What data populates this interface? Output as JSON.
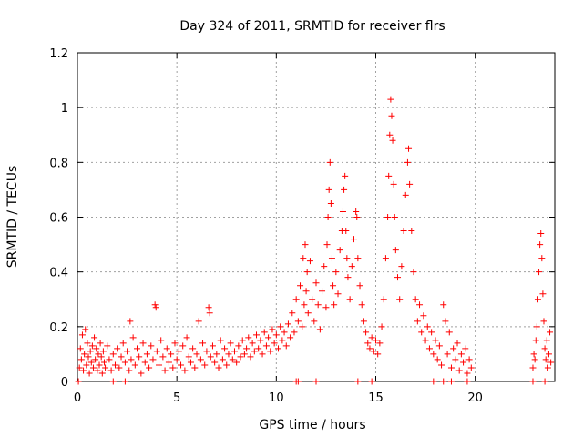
{
  "chart_data": {
    "type": "scatter",
    "title": "Day 324 of 2011, SRMTID for receiver flrs",
    "xlabel": "GPS time / hours",
    "ylabel": "SRMTID / TECUs",
    "xlim": [
      0,
      24
    ],
    "ylim": [
      0,
      1.2
    ],
    "x_ticks": [
      0,
      5,
      10,
      15,
      20
    ],
    "x_tick_labels": [
      "0",
      "5",
      "10",
      "15",
      "20"
    ],
    "y_ticks": [
      0,
      0.2,
      0.4,
      0.6,
      0.8,
      1.0,
      1.2
    ],
    "y_tick_labels": [
      "0",
      "0.2",
      "0.4",
      "0.6",
      "0.8",
      "1",
      "1.2"
    ],
    "grid": true,
    "marker": "plus",
    "color": "#ff0000",
    "series": [
      {
        "name": "SRMTID",
        "points": [
          [
            0.1,
            0.05
          ],
          [
            0.15,
            0.12
          ],
          [
            0.2,
            0.08
          ],
          [
            0.25,
            0.17
          ],
          [
            0.3,
            0.04
          ],
          [
            0.35,
            0.1
          ],
          [
            0.4,
            0.19
          ],
          [
            0.45,
            0.06
          ],
          [
            0.5,
            0.14
          ],
          [
            0.55,
            0.09
          ],
          [
            0.6,
            0.03
          ],
          [
            0.65,
            0.11
          ],
          [
            0.7,
            0.07
          ],
          [
            0.75,
            0.13
          ],
          [
            0.8,
            0.05
          ],
          [
            0.85,
            0.16
          ],
          [
            0.9,
            0.08
          ],
          [
            0.95,
            0.12
          ],
          [
            1.0,
            0.04
          ],
          [
            1.05,
            0.1
          ],
          [
            1.1,
            0.06
          ],
          [
            1.15,
            0.14
          ],
          [
            1.2,
            0.09
          ],
          [
            1.25,
            0.03
          ],
          [
            1.3,
            0.11
          ],
          [
            1.35,
            0.07
          ],
          [
            1.4,
            0.05
          ],
          [
            1.5,
            0.13
          ],
          [
            1.6,
            0.08
          ],
          [
            1.7,
            0.04
          ],
          [
            1.8,
            0.1
          ],
          [
            1.9,
            0.06
          ],
          [
            2.0,
            0.12
          ],
          [
            2.1,
            0.05
          ],
          [
            2.2,
            0.09
          ],
          [
            2.3,
            0.14
          ],
          [
            2.4,
            0.07
          ],
          [
            2.5,
            0.11
          ],
          [
            2.6,
            0.04
          ],
          [
            2.65,
            0.22
          ],
          [
            2.7,
            0.08
          ],
          [
            2.8,
            0.16
          ],
          [
            2.9,
            0.06
          ],
          [
            3.0,
            0.12
          ],
          [
            3.1,
            0.09
          ],
          [
            3.2,
            0.03
          ],
          [
            3.3,
            0.14
          ],
          [
            3.4,
            0.07
          ],
          [
            3.5,
            0.1
          ],
          [
            3.6,
            0.05
          ],
          [
            3.7,
            0.13
          ],
          [
            3.8,
            0.08
          ],
          [
            3.9,
            0.28
          ],
          [
            3.95,
            0.27
          ],
          [
            4.0,
            0.11
          ],
          [
            4.1,
            0.06
          ],
          [
            4.2,
            0.15
          ],
          [
            4.3,
            0.09
          ],
          [
            4.4,
            0.04
          ],
          [
            4.5,
            0.12
          ],
          [
            4.6,
            0.07
          ],
          [
            4.7,
            0.1
          ],
          [
            4.8,
            0.05
          ],
          [
            4.9,
            0.14
          ],
          [
            5.0,
            0.08
          ],
          [
            5.1,
            0.11
          ],
          [
            5.2,
            0.06
          ],
          [
            5.3,
            0.13
          ],
          [
            5.4,
            0.04
          ],
          [
            5.5,
            0.16
          ],
          [
            5.6,
            0.09
          ],
          [
            5.7,
            0.07
          ],
          [
            5.8,
            0.12
          ],
          [
            5.9,
            0.05
          ],
          [
            6.0,
            0.1
          ],
          [
            6.1,
            0.22
          ],
          [
            6.2,
            0.08
          ],
          [
            6.3,
            0.14
          ],
          [
            6.4,
            0.06
          ],
          [
            6.5,
            0.11
          ],
          [
            6.6,
            0.27
          ],
          [
            6.65,
            0.25
          ],
          [
            6.7,
            0.09
          ],
          [
            6.8,
            0.13
          ],
          [
            6.9,
            0.07
          ],
          [
            7.0,
            0.1
          ],
          [
            7.1,
            0.05
          ],
          [
            7.2,
            0.15
          ],
          [
            7.3,
            0.08
          ],
          [
            7.4,
            0.12
          ],
          [
            7.5,
            0.06
          ],
          [
            7.6,
            0.1
          ],
          [
            7.7,
            0.14
          ],
          [
            7.8,
            0.08
          ],
          [
            7.9,
            0.11
          ],
          [
            8.0,
            0.07
          ],
          [
            8.1,
            0.13
          ],
          [
            8.2,
            0.09
          ],
          [
            8.3,
            0.15
          ],
          [
            8.4,
            0.1
          ],
          [
            8.5,
            0.12
          ],
          [
            8.6,
            0.16
          ],
          [
            8.7,
            0.09
          ],
          [
            8.8,
            0.14
          ],
          [
            8.9,
            0.11
          ],
          [
            9.0,
            0.17
          ],
          [
            9.1,
            0.12
          ],
          [
            9.2,
            0.15
          ],
          [
            9.3,
            0.1
          ],
          [
            9.4,
            0.18
          ],
          [
            9.5,
            0.13
          ],
          [
            9.6,
            0.16
          ],
          [
            9.7,
            0.11
          ],
          [
            9.8,
            0.19
          ],
          [
            9.9,
            0.14
          ],
          [
            10.0,
            0.17
          ],
          [
            10.1,
            0.12
          ],
          [
            10.2,
            0.2
          ],
          [
            10.3,
            0.15
          ],
          [
            10.4,
            0.18
          ],
          [
            10.5,
            0.13
          ],
          [
            10.6,
            0.21
          ],
          [
            10.7,
            0.16
          ],
          [
            10.8,
            0.25
          ],
          [
            10.9,
            0.18
          ],
          [
            11.0,
            0.3
          ],
          [
            11.1,
            0.22
          ],
          [
            11.2,
            0.35
          ],
          [
            11.3,
            0.2
          ],
          [
            11.35,
            0.45
          ],
          [
            11.4,
            0.28
          ],
          [
            11.45,
            0.5
          ],
          [
            11.5,
            0.33
          ],
          [
            11.55,
            0.4
          ],
          [
            11.6,
            0.25
          ],
          [
            11.7,
            0.44
          ],
          [
            11.8,
            0.3
          ],
          [
            11.9,
            0.22
          ],
          [
            12.0,
            0.36
          ],
          [
            12.1,
            0.28
          ],
          [
            12.2,
            0.19
          ],
          [
            12.3,
            0.33
          ],
          [
            12.4,
            0.42
          ],
          [
            12.5,
            0.27
          ],
          [
            12.55,
            0.5
          ],
          [
            12.6,
            0.6
          ],
          [
            12.65,
            0.7
          ],
          [
            12.7,
            0.8
          ],
          [
            12.75,
            0.65
          ],
          [
            12.8,
            0.45
          ],
          [
            12.85,
            0.35
          ],
          [
            12.9,
            0.28
          ],
          [
            13.0,
            0.4
          ],
          [
            13.1,
            0.32
          ],
          [
            13.2,
            0.48
          ],
          [
            13.3,
            0.55
          ],
          [
            13.35,
            0.62
          ],
          [
            13.4,
            0.7
          ],
          [
            13.45,
            0.75
          ],
          [
            13.5,
            0.55
          ],
          [
            13.55,
            0.45
          ],
          [
            13.6,
            0.38
          ],
          [
            13.7,
            0.3
          ],
          [
            13.8,
            0.42
          ],
          [
            13.9,
            0.52
          ],
          [
            14.0,
            0.62
          ],
          [
            14.05,
            0.6
          ],
          [
            14.1,
            0.45
          ],
          [
            14.2,
            0.35
          ],
          [
            14.3,
            0.28
          ],
          [
            14.4,
            0.22
          ],
          [
            14.5,
            0.18
          ],
          [
            14.6,
            0.14
          ],
          [
            14.7,
            0.12
          ],
          [
            14.8,
            0.16
          ],
          [
            14.9,
            0.11
          ],
          [
            15.0,
            0.15
          ],
          [
            15.1,
            0.1
          ],
          [
            15.2,
            0.14
          ],
          [
            15.3,
            0.2
          ],
          [
            15.4,
            0.3
          ],
          [
            15.5,
            0.45
          ],
          [
            15.6,
            0.6
          ],
          [
            15.65,
            0.75
          ],
          [
            15.7,
            0.9
          ],
          [
            15.75,
            1.03
          ],
          [
            15.8,
            0.97
          ],
          [
            15.85,
            0.88
          ],
          [
            15.9,
            0.72
          ],
          [
            15.95,
            0.6
          ],
          [
            16.0,
            0.48
          ],
          [
            16.1,
            0.38
          ],
          [
            16.2,
            0.3
          ],
          [
            16.3,
            0.42
          ],
          [
            16.4,
            0.55
          ],
          [
            16.5,
            0.68
          ],
          [
            16.6,
            0.8
          ],
          [
            16.65,
            0.85
          ],
          [
            16.7,
            0.72
          ],
          [
            16.8,
            0.55
          ],
          [
            16.9,
            0.4
          ],
          [
            17.0,
            0.3
          ],
          [
            17.1,
            0.22
          ],
          [
            17.2,
            0.28
          ],
          [
            17.3,
            0.18
          ],
          [
            17.4,
            0.24
          ],
          [
            17.5,
            0.15
          ],
          [
            17.6,
            0.2
          ],
          [
            17.7,
            0.12
          ],
          [
            17.8,
            0.18
          ],
          [
            17.9,
            0.1
          ],
          [
            18.0,
            0.15
          ],
          [
            18.1,
            0.08
          ],
          [
            18.2,
            0.13
          ],
          [
            18.3,
            0.06
          ],
          [
            18.4,
            0.28
          ],
          [
            18.5,
            0.22
          ],
          [
            18.6,
            0.1
          ],
          [
            18.7,
            0.18
          ],
          [
            18.8,
            0.05
          ],
          [
            18.9,
            0.12
          ],
          [
            19.0,
            0.08
          ],
          [
            19.1,
            0.14
          ],
          [
            19.2,
            0.04
          ],
          [
            19.3,
            0.1
          ],
          [
            19.4,
            0.07
          ],
          [
            19.5,
            0.12
          ],
          [
            19.6,
            0.03
          ],
          [
            19.7,
            0.08
          ],
          [
            19.8,
            0.05
          ],
          [
            22.9,
            0.05
          ],
          [
            22.95,
            0.1
          ],
          [
            23.0,
            0.08
          ],
          [
            23.05,
            0.15
          ],
          [
            23.1,
            0.2
          ],
          [
            23.15,
            0.3
          ],
          [
            23.2,
            0.4
          ],
          [
            23.25,
            0.5
          ],
          [
            23.3,
            0.54
          ],
          [
            23.35,
            0.45
          ],
          [
            23.4,
            0.32
          ],
          [
            23.45,
            0.22
          ],
          [
            23.5,
            0.12
          ],
          [
            23.55,
            0.08
          ],
          [
            23.6,
            0.15
          ],
          [
            23.65,
            0.05
          ],
          [
            23.7,
            0.1
          ],
          [
            23.75,
            0.18
          ],
          [
            23.8,
            0.07
          ]
        ]
      },
      {
        "name": "zero-line",
        "points": [
          [
            0.05,
            0
          ],
          [
            1.8,
            0
          ],
          [
            2.4,
            0
          ],
          [
            11.0,
            0
          ],
          [
            11.1,
            0
          ],
          [
            12.0,
            0
          ],
          [
            14.1,
            0
          ],
          [
            14.8,
            0
          ],
          [
            17.9,
            0
          ],
          [
            18.4,
            0
          ],
          [
            18.8,
            0
          ],
          [
            19.6,
            0
          ],
          [
            22.9,
            0
          ],
          [
            23.5,
            0
          ]
        ]
      }
    ]
  }
}
